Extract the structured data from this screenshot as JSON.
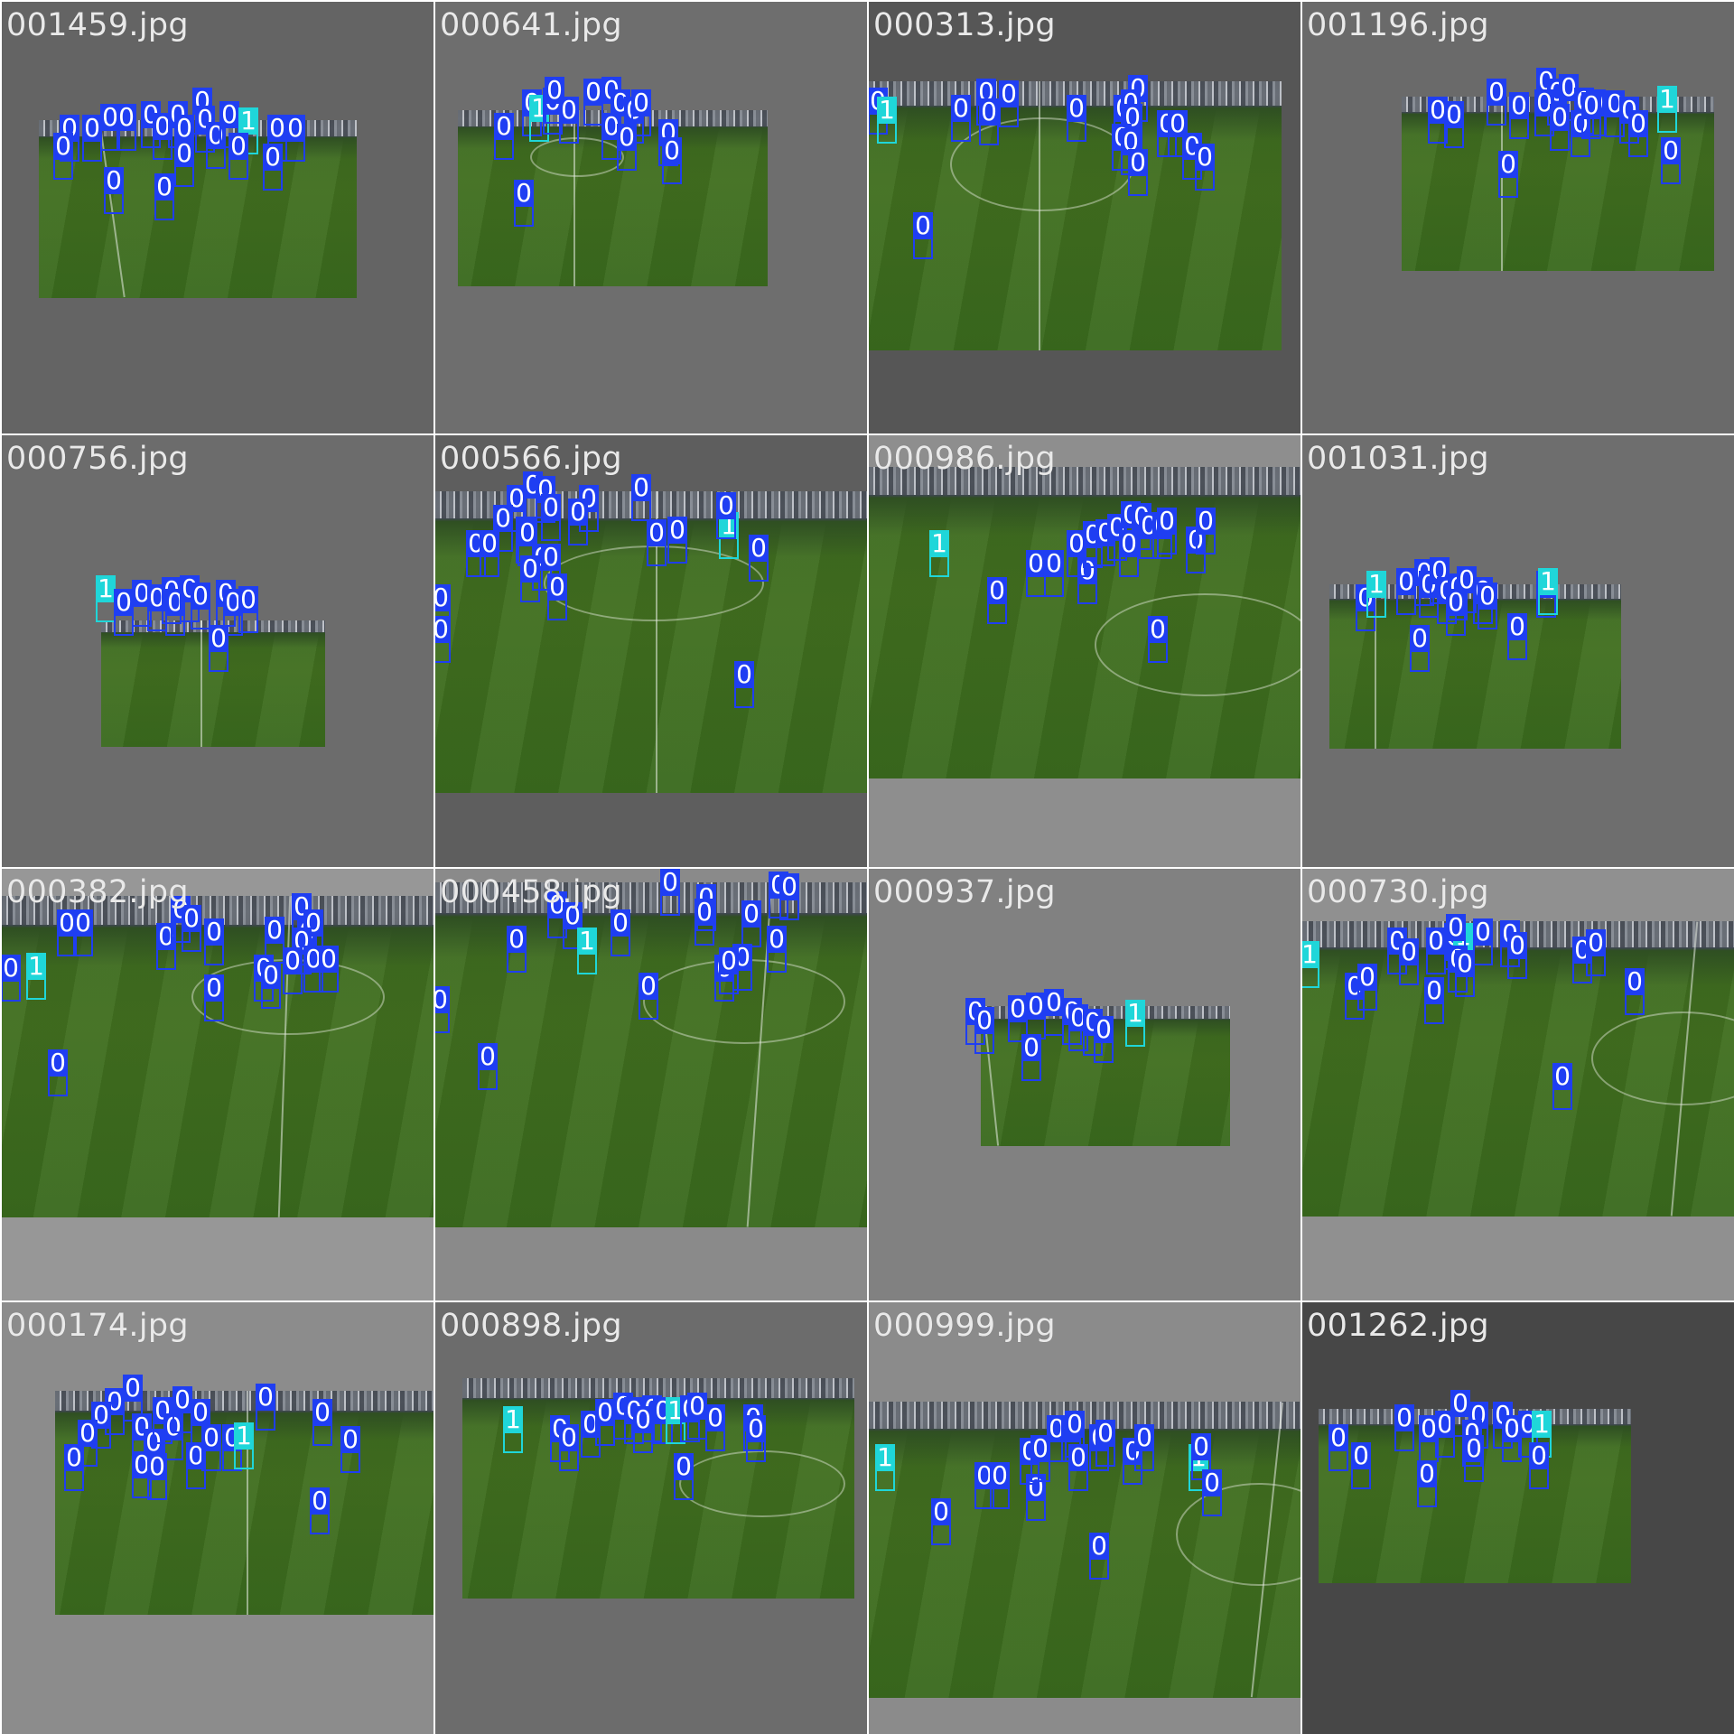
{
  "colors": {
    "class0": "#1f3ef2",
    "class1": "#1fd6d9",
    "grid_line": "#ffffff"
  },
  "tiles": [
    {
      "label": "001459.jpg",
      "bg": "#646464",
      "dets": [
        [
          0,
          75,
          140
        ],
        [
          0,
          68,
          160
        ],
        [
          0,
          100,
          140
        ],
        [
          0,
          120,
          128
        ],
        [
          0,
          138,
          128
        ],
        [
          0,
          165,
          125
        ],
        [
          0,
          178,
          138
        ],
        [
          0,
          195,
          125
        ],
        [
          0,
          202,
          140
        ],
        [
          0,
          222,
          110
        ],
        [
          0,
          225,
          130
        ],
        [
          0,
          237,
          148
        ],
        [
          0,
          252,
          125
        ],
        [
          1,
          273,
          132
        ],
        [
          0,
          262,
          160
        ],
        [
          0,
          305,
          140
        ],
        [
          0,
          325,
          140
        ],
        [
          0,
          300,
          172
        ],
        [
          0,
          202,
          168
        ],
        [
          0,
          124,
          198
        ],
        [
          0,
          180,
          205
        ]
      ]
    },
    {
      "label": "000641.jpg",
      "bg": "#6e6e6e",
      "dets": [
        [
          0,
          76,
          138
        ],
        [
          0,
          107,
          112
        ],
        [
          1,
          115,
          118
        ],
        [
          0,
          130,
          110
        ],
        [
          0,
          132,
          98
        ],
        [
          0,
          148,
          120
        ],
        [
          0,
          175,
          100
        ],
        [
          0,
          195,
          98
        ],
        [
          0,
          205,
          112
        ],
        [
          0,
          220,
          120
        ],
        [
          0,
          228,
          112
        ],
        [
          0,
          195,
          138
        ],
        [
          0,
          212,
          150
        ],
        [
          0,
          258,
          145
        ],
        [
          0,
          262,
          165
        ],
        [
          0,
          98,
          212
        ]
      ]
    },
    {
      "label": "000313.jpg",
      "bg": "#565656",
      "dets": [
        [
          0,
          10,
          110
        ],
        [
          1,
          20,
          120
        ],
        [
          0,
          102,
          118
        ],
        [
          0,
          130,
          100
        ],
        [
          0,
          133,
          122
        ],
        [
          0,
          155,
          102
        ],
        [
          0,
          230,
          118
        ],
        [
          0,
          282,
          118
        ],
        [
          0,
          298,
          96
        ],
        [
          0,
          290,
          112
        ],
        [
          0,
          292,
          128
        ],
        [
          0,
          280,
          150
        ],
        [
          0,
          290,
          155
        ],
        [
          0,
          298,
          178
        ],
        [
          0,
          330,
          135
        ],
        [
          0,
          342,
          135
        ],
        [
          0,
          358,
          160
        ],
        [
          0,
          372,
          172
        ],
        [
          0,
          60,
          248
        ]
      ]
    },
    {
      "label": "001196.jpg",
      "bg": "#6a6a6a",
      "dets": [
        [
          0,
          150,
          120
        ],
        [
          0,
          168,
          125
        ],
        [
          0,
          215,
          100
        ],
        [
          0,
          240,
          115
        ],
        [
          0,
          270,
          88
        ],
        [
          0,
          282,
          100
        ],
        [
          0,
          295,
          95
        ],
        [
          0,
          268,
          112
        ],
        [
          0,
          285,
          128
        ],
        [
          0,
          312,
          110
        ],
        [
          0,
          325,
          112
        ],
        [
          0,
          308,
          135
        ],
        [
          0,
          320,
          115
        ],
        [
          0,
          346,
          113
        ],
        [
          0,
          362,
          120
        ],
        [
          1,
          404,
          108
        ],
        [
          0,
          372,
          135
        ],
        [
          0,
          228,
          180
        ],
        [
          0,
          408,
          165
        ]
      ]
    },
    {
      "label": "000756.jpg",
      "bg": "#6c6c6c",
      "dets": [
        [
          1,
          115,
          170
        ],
        [
          0,
          135,
          185
        ],
        [
          0,
          155,
          175
        ],
        [
          0,
          172,
          180
        ],
        [
          0,
          188,
          172
        ],
        [
          0,
          192,
          185
        ],
        [
          0,
          208,
          170
        ],
        [
          0,
          220,
          178
        ],
        [
          0,
          248,
          175
        ],
        [
          0,
          256,
          185
        ],
        [
          0,
          273,
          182
        ],
        [
          0,
          240,
          225
        ]
      ]
    },
    {
      "label": "000566.jpg",
      "bg": "#5e5e5e",
      "dets": [
        [
          0,
          90,
          70
        ],
        [
          0,
          108,
          55
        ],
        [
          0,
          122,
          60
        ],
        [
          0,
          128,
          80
        ],
        [
          0,
          75,
          92
        ],
        [
          0,
          100,
          105
        ],
        [
          0,
          45,
          120
        ],
        [
          0,
          60,
          120
        ],
        [
          0,
          102,
          108
        ],
        [
          0,
          118,
          135
        ],
        [
          0,
          128,
          135
        ],
        [
          0,
          105,
          148
        ],
        [
          0,
          135,
          168
        ],
        [
          0,
          170,
          70
        ],
        [
          0,
          228,
          58
        ],
        [
          0,
          158,
          85
        ],
        [
          0,
          245,
          108
        ],
        [
          0,
          268,
          105
        ],
        [
          1,
          325,
          100
        ],
        [
          0,
          322,
          78
        ],
        [
          0,
          358,
          125
        ],
        [
          0,
          6,
          180
        ],
        [
          0,
          6,
          215
        ],
        [
          0,
          342,
          265
        ]
      ]
    },
    {
      "label": "000986.jpg",
      "bg": "#8e8e8e",
      "dets": [
        [
          1,
          78,
          120
        ],
        [
          0,
          142,
          172
        ],
        [
          0,
          185,
          142
        ],
        [
          0,
          205,
          142
        ],
        [
          0,
          242,
          150
        ],
        [
          0,
          230,
          120
        ],
        [
          0,
          248,
          110
        ],
        [
          0,
          262,
          108
        ],
        [
          0,
          275,
          102
        ],
        [
          0,
          290,
          88
        ],
        [
          0,
          302,
          90
        ],
        [
          0,
          310,
          100
        ],
        [
          0,
          325,
          100
        ],
        [
          0,
          288,
          120
        ],
        [
          0,
          330,
          95
        ],
        [
          0,
          362,
          116
        ],
        [
          0,
          373,
          95
        ],
        [
          0,
          320,
          215
        ]
      ]
    },
    {
      "label": "001031.jpg",
      "bg": "#6e6e6e",
      "dets": [
        [
          0,
          70,
          180
        ],
        [
          1,
          82,
          165
        ],
        [
          0,
          115,
          162
        ],
        [
          0,
          135,
          152
        ],
        [
          0,
          140,
          165
        ],
        [
          0,
          152,
          150
        ],
        [
          0,
          160,
          172
        ],
        [
          0,
          172,
          168
        ],
        [
          0,
          182,
          160
        ],
        [
          0,
          200,
          172
        ],
        [
          0,
          205,
          178
        ],
        [
          0,
          170,
          185
        ],
        [
          0,
          270,
          165
        ],
        [
          1,
          272,
          162
        ],
        [
          0,
          238,
          212
        ],
        [
          0,
          130,
          225
        ]
      ]
    },
    {
      "label": "000382.jpg",
      "bg": "#979797",
      "dets": [
        [
          0,
          72,
          60
        ],
        [
          0,
          90,
          60
        ],
        [
          0,
          10,
          110
        ],
        [
          1,
          38,
          108
        ],
        [
          0,
          182,
          75
        ],
        [
          0,
          198,
          45
        ],
        [
          0,
          210,
          55
        ],
        [
          0,
          235,
          70
        ],
        [
          0,
          302,
          68
        ],
        [
          0,
          332,
          42
        ],
        [
          0,
          338,
          70
        ],
        [
          0,
          345,
          60
        ],
        [
          0,
          332,
          80
        ],
        [
          0,
          290,
          110
        ],
        [
          0,
          298,
          118
        ],
        [
          0,
          322,
          102
        ],
        [
          0,
          345,
          100
        ],
        [
          0,
          362,
          100
        ],
        [
          0,
          235,
          132
        ],
        [
          0,
          62,
          215
        ]
      ]
    },
    {
      "label": "000458.jpg",
      "bg": "#8a8a8a",
      "dets": [
        [
          0,
          135,
          40
        ],
        [
          0,
          152,
          52
        ],
        [
          1,
          168,
          80
        ],
        [
          0,
          205,
          60
        ],
        [
          0,
          260,
          15
        ],
        [
          0,
          300,
          32
        ],
        [
          0,
          298,
          48
        ],
        [
          0,
          350,
          50
        ],
        [
          0,
          90,
          78
        ],
        [
          0,
          380,
          18
        ],
        [
          0,
          392,
          20
        ],
        [
          0,
          378,
          78
        ],
        [
          0,
          320,
          110
        ],
        [
          0,
          340,
          98
        ],
        [
          0,
          325,
          102
        ],
        [
          0,
          236,
          130
        ],
        [
          0,
          5,
          145
        ],
        [
          0,
          58,
          208
        ]
      ]
    },
    {
      "label": "000937.jpg",
      "bg": "#818181",
      "dets": [
        [
          0,
          118,
          158
        ],
        [
          0,
          128,
          168
        ],
        [
          0,
          165,
          155
        ],
        [
          0,
          185,
          152
        ],
        [
          0,
          205,
          148
        ],
        [
          0,
          225,
          158
        ],
        [
          0,
          232,
          165
        ],
        [
          0,
          248,
          170
        ],
        [
          0,
          260,
          178
        ],
        [
          1,
          295,
          160
        ],
        [
          0,
          180,
          198
        ]
      ]
    },
    {
      "label": "000730.jpg",
      "bg": "#909090",
      "dets": [
        [
          1,
          8,
          95
        ],
        [
          0,
          105,
          80
        ],
        [
          0,
          118,
          92
        ],
        [
          0,
          148,
          80
        ],
        [
          0,
          168,
          75
        ],
        [
          1,
          178,
          75
        ],
        [
          0,
          170,
          65
        ],
        [
          0,
          200,
          70
        ],
        [
          0,
          230,
          72
        ],
        [
          0,
          238,
          85
        ],
        [
          0,
          310,
          90
        ],
        [
          0,
          325,
          82
        ],
        [
          0,
          172,
          100
        ],
        [
          0,
          180,
          105
        ],
        [
          0,
          146,
          135
        ],
        [
          0,
          58,
          130
        ],
        [
          0,
          72,
          120
        ],
        [
          0,
          368,
          125
        ],
        [
          0,
          288,
          230
        ]
      ]
    },
    {
      "label": "000174.jpg",
      "bg": "#8c8c8c",
      "dets": [
        [
          0,
          145,
          95
        ],
        [
          0,
          125,
          110
        ],
        [
          0,
          110,
          125
        ],
        [
          0,
          95,
          145
        ],
        [
          0,
          80,
          172
        ],
        [
          0,
          155,
          138
        ],
        [
          0,
          168,
          155
        ],
        [
          0,
          178,
          120
        ],
        [
          0,
          190,
          138
        ],
        [
          0,
          200,
          108
        ],
        [
          0,
          220,
          122
        ],
        [
          0,
          215,
          170
        ],
        [
          0,
          232,
          150
        ],
        [
          0,
          255,
          150
        ],
        [
          1,
          268,
          148
        ],
        [
          0,
          155,
          180
        ],
        [
          0,
          172,
          182
        ],
        [
          0,
          292,
          105
        ],
        [
          0,
          355,
          122
        ],
        [
          0,
          386,
          152
        ],
        [
          0,
          352,
          220
        ]
      ]
    },
    {
      "label": "000898.jpg",
      "bg": "#6c6c6c",
      "dets": [
        [
          1,
          86,
          130
        ],
        [
          0,
          138,
          140
        ],
        [
          0,
          148,
          150
        ],
        [
          0,
          172,
          135
        ],
        [
          0,
          188,
          122
        ],
        [
          0,
          208,
          115
        ],
        [
          0,
          220,
          120
        ],
        [
          0,
          240,
          118
        ],
        [
          0,
          230,
          130
        ],
        [
          0,
          252,
          120
        ],
        [
          1,
          266,
          120
        ],
        [
          0,
          282,
          118
        ],
        [
          0,
          290,
          115
        ],
        [
          0,
          310,
          128
        ],
        [
          0,
          352,
          128
        ],
        [
          0,
          355,
          140
        ],
        [
          0,
          275,
          182
        ]
      ]
    },
    {
      "label": "000999.jpg",
      "bg": "#8b8b8b",
      "dets": [
        [
          1,
          18,
          172
        ],
        [
          0,
          80,
          232
        ],
        [
          0,
          128,
          192
        ],
        [
          0,
          145,
          192
        ],
        [
          0,
          185,
          205
        ],
        [
          0,
          178,
          165
        ],
        [
          0,
          190,
          162
        ],
        [
          0,
          208,
          140
        ],
        [
          0,
          224,
          140
        ],
        [
          0,
          228,
          135
        ],
        [
          0,
          232,
          172
        ],
        [
          0,
          255,
          150
        ],
        [
          0,
          262,
          145
        ],
        [
          0,
          292,
          165
        ],
        [
          0,
          305,
          150
        ],
        [
          1,
          365,
          172
        ],
        [
          0,
          368,
          160
        ],
        [
          0,
          380,
          200
        ],
        [
          0,
          255,
          270
        ]
      ]
    },
    {
      "label": "001262.jpg",
      "bg": "#474747",
      "dets": [
        [
          0,
          40,
          150
        ],
        [
          0,
          65,
          170
        ],
        [
          0,
          113,
          128
        ],
        [
          0,
          140,
          140
        ],
        [
          0,
          158,
          135
        ],
        [
          0,
          175,
          112
        ],
        [
          0,
          195,
          125
        ],
        [
          0,
          188,
          145
        ],
        [
          0,
          190,
          162
        ],
        [
          0,
          222,
          125
        ],
        [
          0,
          232,
          140
        ],
        [
          0,
          250,
          135
        ],
        [
          1,
          265,
          135
        ],
        [
          0,
          262,
          170
        ],
        [
          0,
          138,
          190
        ]
      ]
    }
  ]
}
